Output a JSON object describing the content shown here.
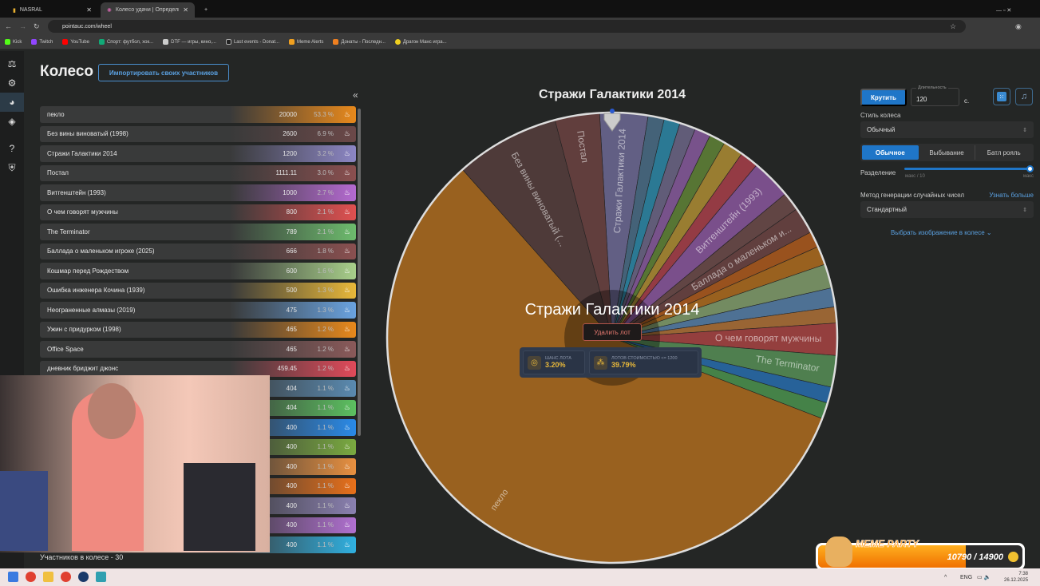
{
  "browser": {
    "tabs": [
      {
        "label": "NASRAL",
        "active": false
      },
      {
        "label": "Колесо удачи | Определите п...",
        "active": true
      }
    ],
    "url": "pointauc.com/wheel",
    "bookmarks": [
      "Kick",
      "Twitch",
      "YouTube",
      "Спорт: футбол, хок...",
      "DTF — игры, кино,...",
      "Last events - Donat...",
      "Meme Alerts",
      "Донаты - Последн...",
      "Драгон Манс игра..."
    ]
  },
  "page": {
    "title": "Колесо",
    "import_label": "Импортировать своих участников",
    "collapse_icon": "«",
    "participants_count": "Участников в колесе - 30"
  },
  "items": [
    {
      "name": "пекло",
      "amount": "20000",
      "percent": "53.3 %",
      "color": "#e8891c",
      "wheel_label": "пекло"
    },
    {
      "name": "Без вины виноватый (1998)",
      "amount": "2600",
      "percent": "6.9 %",
      "color": "#6b4848",
      "wheel_label": "Без вины виноватый (..."
    },
    {
      "name": "Стражи Галактики 2014",
      "amount": "1200",
      "percent": "3.2 %",
      "color": "#8c86c4",
      "wheel_label": "Стражи Галактики 2014"
    },
    {
      "name": "Постал",
      "amount": "1111.11",
      "percent": "3.0 %",
      "color": "#8a4f4f",
      "wheel_label": "Постал"
    },
    {
      "name": "Витгенштейн (1993)",
      "amount": "1000",
      "percent": "2.7 %",
      "color": "#b46ad0",
      "wheel_label": "Витгенштейн (1993)"
    },
    {
      "name": "О чем говорят мужчины",
      "amount": "800",
      "percent": "2.1 %",
      "color": "#e05050",
      "wheel_label": "О чем говорят мужчины"
    },
    {
      "name": "The Terminator",
      "amount": "789",
      "percent": "2.1 %",
      "color": "#6dbb6d",
      "wheel_label": "The Terminator"
    },
    {
      "name": "Баллада о маленьком игроке (2025)",
      "amount": "666",
      "percent": "1.8 %",
      "color": "#8a5050",
      "wheel_label": "Баллада о маленьком и..."
    },
    {
      "name": "Кошмар перед Рождеством",
      "amount": "600",
      "percent": "1.6 %",
      "color": "#a8cf8a",
      "wheel_label": ""
    },
    {
      "name": "Ошибка инженера Кочина (1939)",
      "amount": "500",
      "percent": "1.3 %",
      "color": "#e8b83a",
      "wheel_label": ""
    },
    {
      "name": "Неограненные алмазы (2019)",
      "amount": "475",
      "percent": "1.3 %",
      "color": "#6aa3e0",
      "wheel_label": ""
    },
    {
      "name": "Ужин с придурком (1998)",
      "amount": "465",
      "percent": "1.2 %",
      "color": "#e8891c",
      "wheel_label": ""
    },
    {
      "name": "Office Space",
      "amount": "465",
      "percent": "1.2 %",
      "color": "#8a5a5a",
      "wheel_label": ""
    },
    {
      "name": "дневник бриджит джонс",
      "amount": "459.45",
      "percent": "1.2 %",
      "color": "#e04a5a",
      "wheel_label": ""
    },
    {
      "name": "",
      "amount": "404",
      "percent": "1.1 %",
      "color": "#5a8ab0",
      "wheel_label": ""
    },
    {
      "name": "",
      "amount": "404",
      "percent": "1.1 %",
      "color": "#5cc060",
      "wheel_label": ""
    },
    {
      "name": "",
      "amount": "400",
      "percent": "1.1 %",
      "color": "#2a8ae8",
      "wheel_label": ""
    },
    {
      "name": "",
      "amount": "400",
      "percent": "1.1 %",
      "color": "#7aaa40",
      "wheel_label": ""
    },
    {
      "name": "",
      "amount": "400",
      "percent": "1.1 %",
      "color": "#e89040",
      "wheel_label": ""
    },
    {
      "name": "",
      "amount": "400",
      "percent": "1.1 %",
      "color": "#e8701a",
      "wheel_label": ""
    },
    {
      "name": "",
      "amount": "400",
      "percent": "1.1 %",
      "color": "#8a80b0",
      "wheel_label": ""
    },
    {
      "name": "",
      "amount": "400",
      "percent": "1.1 %",
      "color": "#b070d0",
      "wheel_label": ""
    },
    {
      "name": "",
      "amount": "400",
      "percent": "1.1 %",
      "color": "#30b0e0",
      "wheel_label": ""
    }
  ],
  "wheel": {
    "title": "Стражи Галактики 2014",
    "order": [
      2,
      14,
      22,
      20,
      21,
      17,
      9,
      13,
      4,
      12,
      7,
      19,
      11,
      8,
      10,
      18,
      5,
      6,
      16,
      15,
      0,
      1,
      3
    ],
    "selected": "Стражи Галактики 2014",
    "delete_label": "Удалить лот",
    "chance_label": "ШАНС ЛОТА",
    "chance_value": "3.20%",
    "cost_label": "ЛОТОВ СТОИМОСТЬЮ <= 1200",
    "cost_value": "39.79%"
  },
  "settings": {
    "spin_label": "Крутить",
    "duration_label": "Длительность",
    "duration_value": "120",
    "duration_unit": "с.",
    "style_label": "Стиль колеса",
    "style_value": "Обычный",
    "modes": [
      "Обычное",
      "Выбывание",
      "Батл рояль"
    ],
    "active_mode": "Обычное",
    "split_label": "Разделение",
    "split_min": "макс / 10",
    "split_max": "макс",
    "split_value": 1.0,
    "rng_label": "Метод генерации случайных чисел",
    "rng_learn": "Узнать больше",
    "rng_value": "Стандартный",
    "image_label": "Выбрать изображение в колесе"
  },
  "overlay": {
    "title": "MEME PARTY",
    "progress": "10790 / 14900",
    "fraction": 0.724
  },
  "taskbar": {
    "lang": "ENG",
    "time": "7:38",
    "date": "26.12.2025"
  }
}
